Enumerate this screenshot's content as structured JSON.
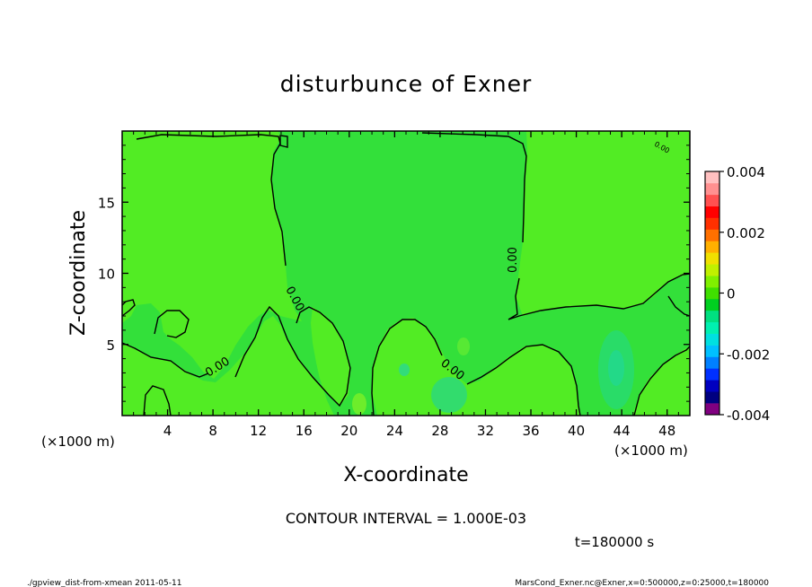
{
  "chart_data": {
    "type": "heatmap",
    "title": "disturbunce of Exner",
    "xlabel": "X-coordinate",
    "ylabel": "Z-coordinate",
    "x_unit": "(×1000 m)",
    "xlim": [
      0,
      50
    ],
    "ylim": [
      0,
      20
    ],
    "x_ticks": [
      4,
      8,
      12,
      16,
      20,
      24,
      28,
      32,
      36,
      40,
      44,
      48
    ],
    "y_ticks": [
      5,
      10,
      15
    ],
    "contour_labels": [
      "0.00",
      "0.00",
      "0.00",
      "0.00",
      "0.00"
    ],
    "colorbar": {
      "min": -0.004,
      "max": 0.004,
      "tick_labels": [
        "0.004",
        "0.002",
        "0",
        "-0.002",
        "-0.004"
      ],
      "tick_values": [
        0.004,
        0.002,
        0,
        -0.002,
        -0.004
      ],
      "colors": [
        "#800080",
        "#000080",
        "#0000c0",
        "#0030ff",
        "#0080ff",
        "#00c0ff",
        "#00e0e0",
        "#00f0b0",
        "#00e080",
        "#00d020",
        "#40e000",
        "#80f000",
        "#c0f000",
        "#f0e000",
        "#ffb000",
        "#ff7000",
        "#ff3000",
        "#ff0000",
        "#ff5050",
        "#ff9090",
        "#ffc0c0"
      ]
    },
    "contour_interval_text": "CONTOUR INTERVAL = 1.000E-03",
    "time_text": "t=180000 s"
  },
  "footer": {
    "left": "./gpview_dist-from-xmean  2011-05-11",
    "right": "MarsCond_Exner.nc@Exner,x=0:500000,z=0:25000,t=180000"
  }
}
